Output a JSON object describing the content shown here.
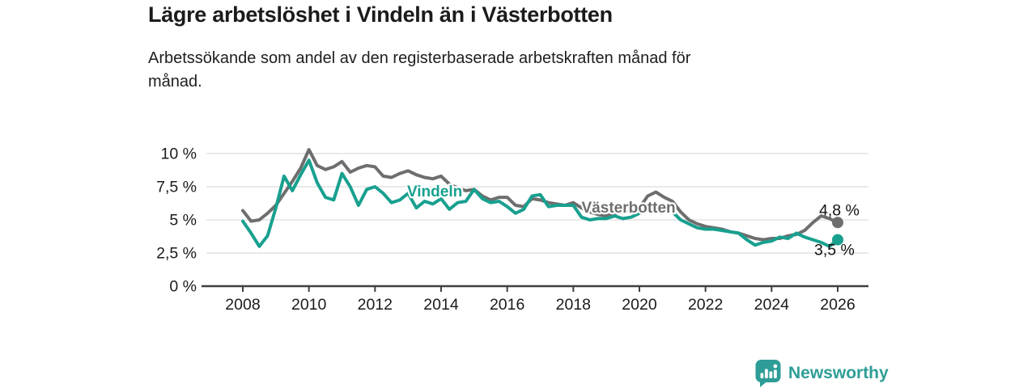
{
  "header": {
    "title": "Lägre arbetslöshet i Vindeln än i Västerbotten",
    "subtitle_lines": [
      "Arbetssökande som andel av den registerbaserade arbetskraften månad för",
      "månad."
    ]
  },
  "footer": {
    "brand": "Newsworthy",
    "logo_icon": "newsworthy-speech-bubble-bar-chart-icon"
  },
  "colors": {
    "vindeln": "#18a08f",
    "vasterbotten": "#6e6e6e",
    "gridline": "#dcdcdc",
    "axis": "#3f3f3f",
    "tick_text": "#1b1b1b",
    "end_label_text": "#121212",
    "brand_teal": "#2e9d97",
    "background": "#ffffff"
  },
  "chart_data": {
    "type": "line",
    "title": "Lägre arbetslöshet i Vindeln än i Västerbotten",
    "subtitle": "Arbetssökande som andel av den registerbaserade arbetskraften månad för månad.",
    "xlabel": "",
    "ylabel": "",
    "ylim": [
      0,
      10.9
    ],
    "xlim": [
      2007.6,
      2026.9
    ],
    "grid": "horizontal",
    "legend_position": "inline-labels",
    "yticks": [
      {
        "value": 10,
        "label": "10 %"
      },
      {
        "value": 7.5,
        "label": "7,5 %"
      },
      {
        "value": 5,
        "label": "5 %"
      },
      {
        "value": 2.5,
        "label": "2,5 %"
      },
      {
        "value": 0,
        "label": "0 %"
      }
    ],
    "xticks": [
      {
        "value": 2008,
        "label": "2008"
      },
      {
        "value": 2010,
        "label": "2010"
      },
      {
        "value": 2012,
        "label": "2012"
      },
      {
        "value": 2014,
        "label": "2014"
      },
      {
        "value": 2016,
        "label": "2016"
      },
      {
        "value": 2018,
        "label": "2018"
      },
      {
        "value": 2020,
        "label": "2020"
      },
      {
        "value": 2022,
        "label": "2022"
      },
      {
        "value": 2024,
        "label": "2024"
      },
      {
        "value": 2026,
        "label": "2026"
      }
    ],
    "x": [
      2008,
      2008.25,
      2008.5,
      2008.75,
      2009,
      2009.25,
      2009.5,
      2009.75,
      2010,
      2010.25,
      2010.5,
      2010.75,
      2011,
      2011.25,
      2011.5,
      2011.75,
      2012,
      2012.25,
      2012.5,
      2012.75,
      2013,
      2013.25,
      2013.5,
      2013.75,
      2014,
      2014.25,
      2014.5,
      2014.75,
      2015,
      2015.25,
      2015.5,
      2015.75,
      2016,
      2016.25,
      2016.5,
      2016.75,
      2017,
      2017.25,
      2017.5,
      2017.75,
      2018,
      2018.25,
      2018.5,
      2018.75,
      2019,
      2019.25,
      2019.5,
      2019.75,
      2020,
      2020.25,
      2020.5,
      2020.75,
      2021,
      2021.25,
      2021.5,
      2021.75,
      2022,
      2022.25,
      2022.5,
      2022.75,
      2023,
      2023.25,
      2023.5,
      2023.75,
      2024,
      2024.25,
      2024.5,
      2024.75,
      2025,
      2025.25,
      2025.5,
      2025.75,
      2026
    ],
    "series": [
      {
        "name": "Västerbotten",
        "color": "#6e6e6e",
        "inline_label": {
          "x": 2018.25,
          "y": 5.95
        },
        "end_label": "4,8 %",
        "end_value": 4.8,
        "values": [
          5.7,
          4.9,
          5.0,
          5.5,
          6.1,
          7.0,
          7.9,
          8.9,
          10.3,
          9.1,
          8.8,
          9.0,
          9.4,
          8.6,
          8.9,
          9.1,
          9.0,
          8.3,
          8.2,
          8.5,
          8.7,
          8.4,
          8.2,
          8.1,
          8.3,
          7.7,
          7.4,
          7.2,
          7.3,
          6.8,
          6.5,
          6.7,
          6.7,
          6.1,
          6.0,
          6.6,
          6.5,
          6.3,
          6.2,
          6.1,
          6.3,
          5.9,
          5.6,
          5.4,
          5.3,
          5.5,
          5.6,
          5.7,
          5.9,
          6.8,
          7.1,
          6.7,
          6.4,
          5.6,
          5.0,
          4.7,
          4.5,
          4.4,
          4.3,
          4.1,
          4.0,
          3.8,
          3.6,
          3.5,
          3.6,
          3.6,
          3.8,
          3.9,
          4.2,
          4.8,
          5.3,
          5.1,
          4.8
        ]
      },
      {
        "name": "Vindeln",
        "color": "#18a08f",
        "inline_label": {
          "x": 2012.97,
          "y": 7.15
        },
        "end_label": "3,5 %",
        "end_value": 3.5,
        "values": [
          4.9,
          4.0,
          3.0,
          3.8,
          5.9,
          8.3,
          7.2,
          8.4,
          9.5,
          7.8,
          6.7,
          6.5,
          8.5,
          7.5,
          6.1,
          7.3,
          7.5,
          7.0,
          6.3,
          6.5,
          7.0,
          5.9,
          6.4,
          6.2,
          6.6,
          5.8,
          6.3,
          6.4,
          7.3,
          6.6,
          6.3,
          6.4,
          6.0,
          5.5,
          5.8,
          6.8,
          6.9,
          6.0,
          6.1,
          6.1,
          6.1,
          5.2,
          5.0,
          5.1,
          5.1,
          5.3,
          5.1,
          5.2,
          5.5,
          6.0,
          6.2,
          5.9,
          5.6,
          5.0,
          4.7,
          4.4,
          4.3,
          4.3,
          4.2,
          4.1,
          4.0,
          3.5,
          3.1,
          3.3,
          3.4,
          3.7,
          3.6,
          4.0,
          3.7,
          3.5,
          3.3,
          3.0,
          3.5
        ]
      }
    ]
  }
}
